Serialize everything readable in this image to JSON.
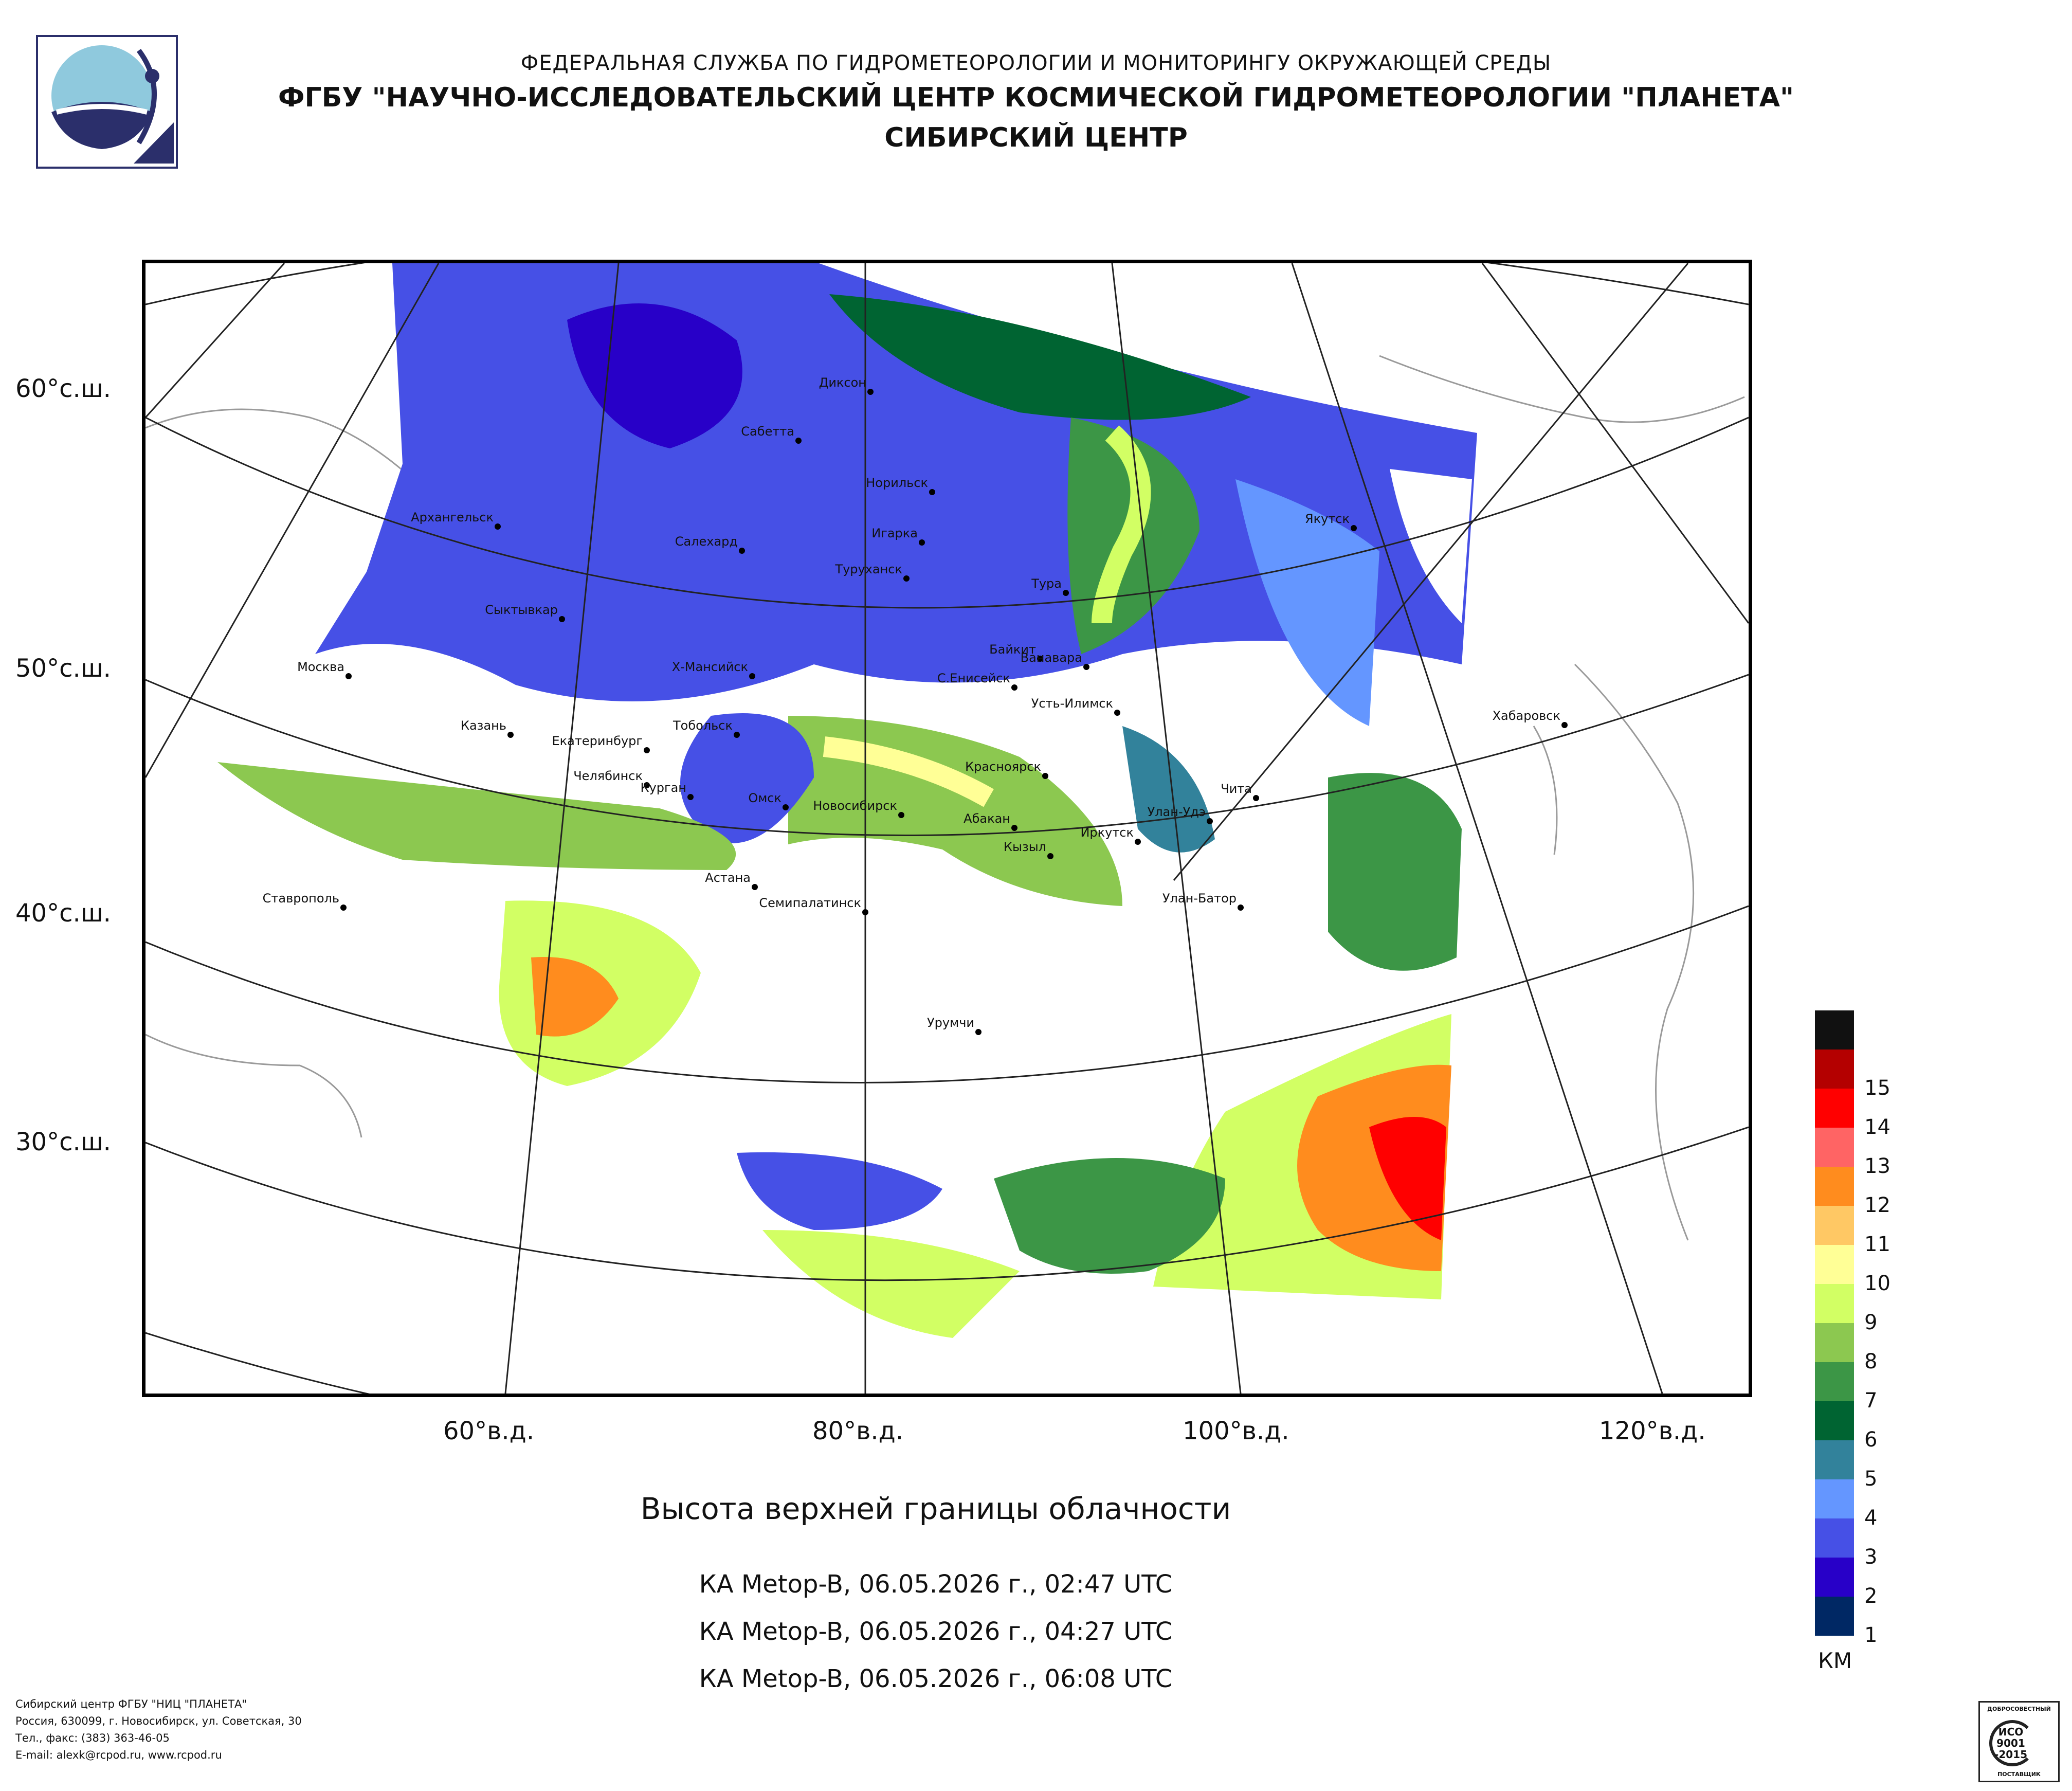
{
  "header": {
    "line1": "ФЕДЕРАЛЬНАЯ СЛУЖБА ПО ГИДРОМЕТЕОРОЛОГИИ И МОНИТОРИНГУ ОКРУЖАЮЩЕЙ СРЕДЫ",
    "line2": "ФГБУ \"НАУЧНО-ИССЛЕДОВАТЕЛЬСКИЙ ЦЕНТР КОСМИЧЕСКОЙ ГИДРОМЕТЕОРОЛОГИИ \"ПЛАНЕТА\"",
    "line3": "СИБИРСКИЙ ЦЕНТР"
  },
  "map": {
    "title": "Высота верхней границы облачности",
    "passes": [
      "КА Metop-B, 06.05.2026 г., 02:47 UTC",
      "КА Metop-B, 06.05.2026 г., 04:27 UTC",
      "КА Metop-B, 06.05.2026 г., 06:08 UTC"
    ],
    "lat_labels": [
      "60°с.ш.",
      "50°с.ш.",
      "40°с.ш.",
      "30°с.ш."
    ],
    "lon_labels": [
      "60°в.д.",
      "80°в.д.",
      "100°в.д.",
      "120°в.д."
    ],
    "cities": [
      {
        "name": "Диксон"
      },
      {
        "name": "Сабетта"
      },
      {
        "name": "Норильск"
      },
      {
        "name": "Архангельск"
      },
      {
        "name": "Салехард"
      },
      {
        "name": "Игарка"
      },
      {
        "name": "Туруханск"
      },
      {
        "name": "Тура"
      },
      {
        "name": "Якутск"
      },
      {
        "name": "Сыктывкар"
      },
      {
        "name": "Байкит"
      },
      {
        "name": "Ванавара"
      },
      {
        "name": "Москва"
      },
      {
        "name": "Х-Мансийск"
      },
      {
        "name": "С.Енисейск"
      },
      {
        "name": "Усть-Илимск"
      },
      {
        "name": "Хабаровск"
      },
      {
        "name": "Казань"
      },
      {
        "name": "Тобольск"
      },
      {
        "name": "Екатеринбург"
      },
      {
        "name": "Красноярск"
      },
      {
        "name": "Челябинск"
      },
      {
        "name": "Курган"
      },
      {
        "name": "Омск"
      },
      {
        "name": "Чита"
      },
      {
        "name": "Новосибирск"
      },
      {
        "name": "Абакан"
      },
      {
        "name": "Улан-Удэ"
      },
      {
        "name": "Иркутск"
      },
      {
        "name": "Кызыл"
      },
      {
        "name": "Астана"
      },
      {
        "name": "Ставрополь"
      },
      {
        "name": "Семипалатинск"
      },
      {
        "name": "Улан-Батор"
      },
      {
        "name": "Урумчи"
      }
    ]
  },
  "legend": {
    "unit": "КМ",
    "items": [
      {
        "label": "",
        "color": "#111111"
      },
      {
        "label": "15",
        "color": "#b40000"
      },
      {
        "label": "14",
        "color": "#ff0000"
      },
      {
        "label": "13",
        "color": "#ff6464"
      },
      {
        "label": "12",
        "color": "#ff8c1e"
      },
      {
        "label": "11",
        "color": "#ffc864"
      },
      {
        "label": "10",
        "color": "#ffff96"
      },
      {
        "label": "9",
        "color": "#d2ff64"
      },
      {
        "label": "8",
        "color": "#8cc850"
      },
      {
        "label": "7",
        "color": "#3c9646"
      },
      {
        "label": "6",
        "color": "#006432"
      },
      {
        "label": "5",
        "color": "#32829b"
      },
      {
        "label": "4",
        "color": "#6496ff"
      },
      {
        "label": "3",
        "color": "#4650e6"
      },
      {
        "label": "2",
        "color": "#2800c8"
      },
      {
        "label": "1",
        "color": "#002864"
      }
    ]
  },
  "footer": {
    "lines": [
      "Сибирский центр ФГБУ \"НИЦ \"ПЛАНЕТА\"",
      "Россия, 630099, г. Новосибирск, ул. Советская, 30",
      "Тел., факс: (383) 363-46-05",
      "E-mail: alexk@rcpod.ru, www.rcpod.ru"
    ]
  },
  "certificate": {
    "top": "ДОБРОСОВЕСТНЫЙ",
    "mid1": "ИСО",
    "mid2": "9001",
    "mid3": "-2015",
    "bottom": "ПОСТАВЩИК"
  }
}
